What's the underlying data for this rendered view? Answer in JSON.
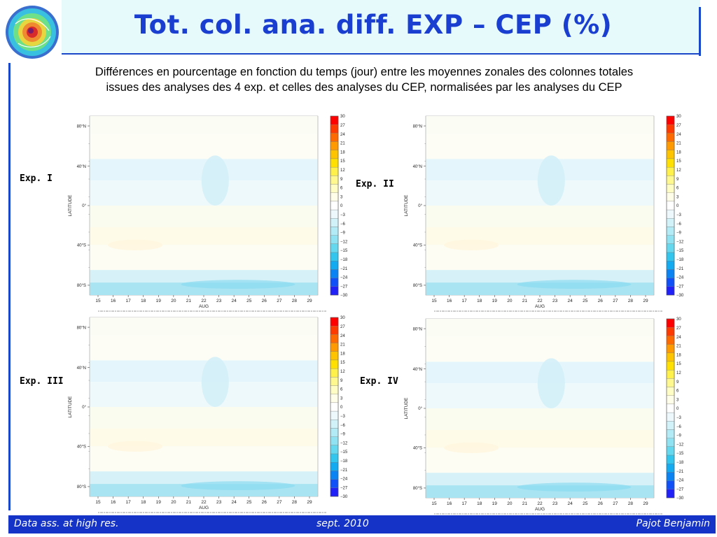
{
  "header": {
    "title": "Tot. col. ana. diff. EXP – CEP (%)",
    "subtitle_line1": "Différences en pourcentage en fonction du temps (jour) entre les moyennes zonales des colonnes totales",
    "subtitle_line2": "issues des analyses des 4 exp. et celles des analyses du CEP, normalisées par les analyses du CEP"
  },
  "footer": {
    "left": "Data ass. at high res.",
    "center": "sept. 2010",
    "right": "Pajot Benjamin"
  },
  "colors": {
    "accent": "#1a3fd0",
    "footer_bg": "#1533c6",
    "header_band": "#e6f9fb"
  },
  "chart_data": [
    {
      "type": "heatmap",
      "label": "Exp. I",
      "xlabel": "AUG",
      "ylabel": "LATITUDE",
      "x_ticks": [
        "15",
        "16",
        "17",
        "18",
        "19",
        "20",
        "21",
        "22",
        "23",
        "24",
        "25",
        "26",
        "27",
        "28",
        "29"
      ],
      "y_ticks": [
        "80°N",
        "40°N",
        "0°",
        "40°S",
        "80°S"
      ],
      "colorbar": [
        "30",
        "27",
        "24",
        "21",
        "18",
        "15",
        "12",
        "9",
        "6",
        "3",
        "0",
        "−3",
        "−6",
        "−9",
        "−12",
        "−15",
        "−18",
        "−21",
        "−24",
        "−27",
        "−30"
      ]
    },
    {
      "type": "heatmap",
      "label": "Exp. II",
      "xlabel": "AUG",
      "ylabel": "LATITUDE",
      "x_ticks": [
        "15",
        "16",
        "17",
        "18",
        "19",
        "20",
        "21",
        "22",
        "23",
        "24",
        "25",
        "26",
        "27",
        "28",
        "29"
      ],
      "y_ticks": [
        "80°N",
        "40°N",
        "0°",
        "40°S",
        "80°S"
      ],
      "colorbar": [
        "30",
        "27",
        "24",
        "21",
        "18",
        "15",
        "12",
        "9",
        "6",
        "3",
        "0",
        "−3",
        "−6",
        "−9",
        "−12",
        "−15",
        "−18",
        "−21",
        "−24",
        "−27",
        "−30"
      ]
    },
    {
      "type": "heatmap",
      "label": "Exp. III",
      "xlabel": "AUG",
      "ylabel": "LATITUDE",
      "x_ticks": [
        "15",
        "16",
        "17",
        "18",
        "19",
        "20",
        "21",
        "22",
        "23",
        "24",
        "25",
        "26",
        "27",
        "28",
        "29"
      ],
      "y_ticks": [
        "80°N",
        "40°N",
        "0°",
        "40°S",
        "80°S"
      ],
      "colorbar": [
        "30",
        "27",
        "24",
        "21",
        "18",
        "15",
        "12",
        "9",
        "6",
        "3",
        "0",
        "−3",
        "−6",
        "−9",
        "−12",
        "−15",
        "−18",
        "−21",
        "−24",
        "−27",
        "−30"
      ]
    },
    {
      "type": "heatmap",
      "label": "Exp. IV",
      "xlabel": "AUG",
      "ylabel": "LATITUDE",
      "x_ticks": [
        "15",
        "16",
        "17",
        "18",
        "19",
        "20",
        "21",
        "22",
        "23",
        "24",
        "25",
        "26",
        "27",
        "28",
        "29"
      ],
      "y_ticks": [
        "80°N",
        "40°N",
        "0°",
        "40°S",
        "80°S"
      ],
      "colorbar": [
        "30",
        "27",
        "24",
        "21",
        "18",
        "15",
        "12",
        "9",
        "6",
        "3",
        "0",
        "−3",
        "−6",
        "−9",
        "−12",
        "−15",
        "−18",
        "−21",
        "−24",
        "−27",
        "−30"
      ]
    }
  ],
  "colorbar_colors": [
    "#ff0000",
    "#ff3a00",
    "#ff6a00",
    "#ff9a00",
    "#ffc400",
    "#ffe000",
    "#fff04a",
    "#fff88f",
    "#fffcc4",
    "#fffee8",
    "#ffffff",
    "#ecf8fc",
    "#d2f2fa",
    "#b2eaf6",
    "#8fe2f2",
    "#64d8ee",
    "#32c6ee",
    "#12aaf0",
    "#0a84f4",
    "#1050f8",
    "#2020f8"
  ]
}
